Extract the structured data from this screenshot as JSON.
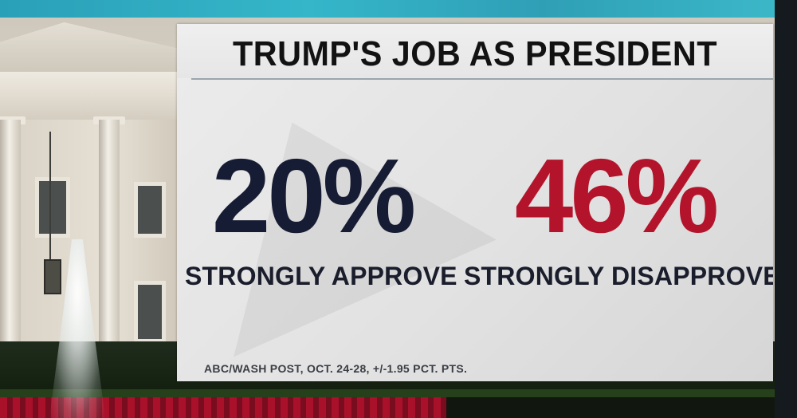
{
  "graphic": {
    "title": "TRUMP'S JOB AS PRESIDENT",
    "source": "ABC/WASH POST, OCT. 24-28, +/-1.95 PCT. PTS."
  },
  "chart_data": {
    "type": "table",
    "title": "TRUMP'S JOB AS PRESIDENT",
    "categories": [
      "STRONGLY APPROVE",
      "STRONGLY DISAPPROVE"
    ],
    "values": [
      20,
      46
    ],
    "display_values": [
      "20%",
      "46%"
    ],
    "colors": [
      "#161c33",
      "#b3142b"
    ],
    "source": "ABC/WASH POST, OCT. 24-28, +/-1.95 PCT. PTS."
  }
}
